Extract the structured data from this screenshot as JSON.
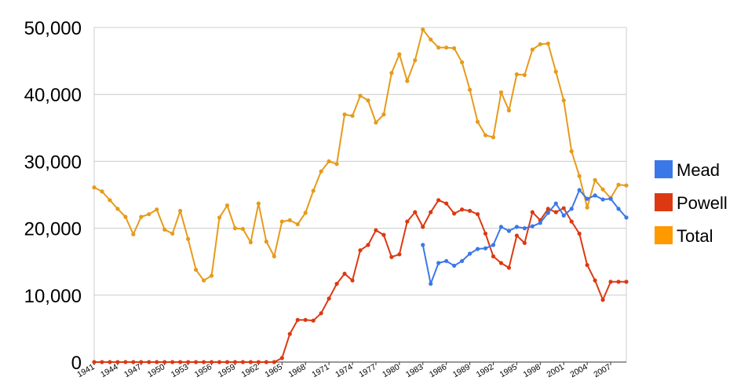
{
  "chart_data": {
    "type": "line",
    "title": "",
    "xlabel": "",
    "ylabel": "",
    "ylim": [
      0,
      50000
    ],
    "xlim": [
      1941,
      2009
    ],
    "grid": true,
    "legend_position": "right",
    "y_ticks": [
      "0",
      "10,000",
      "20,000",
      "30,000",
      "40,000",
      "50,000"
    ],
    "y_tick_values": [
      0,
      10000,
      20000,
      30000,
      40000,
      50000
    ],
    "x_ticks": [
      "1941",
      "1944",
      "1947",
      "1950",
      "1953",
      "1956",
      "1959",
      "1962",
      "1965",
      "1968",
      "1971",
      "1974",
      "1977",
      "1980",
      "1983",
      "1986",
      "1989",
      "1992",
      "1995",
      "1998",
      "2001",
      "2004",
      "2007"
    ],
    "series": [
      {
        "name": "Mead",
        "color": "#3b78e7",
        "x": [
          1983,
          1984,
          1985,
          1986,
          1987,
          1988,
          1989,
          1990,
          1991,
          1992,
          1993,
          1994,
          1995,
          1996,
          1997,
          1998,
          1999,
          2000,
          2001,
          2002,
          2003,
          2004,
          2005,
          2006,
          2007,
          2008,
          2009
        ],
        "values": [
          17500,
          11700,
          14800,
          15100,
          14400,
          15100,
          16200,
          16900,
          17000,
          17500,
          20200,
          19600,
          20200,
          20000,
          20300,
          20800,
          22300,
          23700,
          21900,
          22900,
          25700,
          24400,
          24900,
          24300,
          24400,
          22900,
          21600
        ]
      },
      {
        "name": "Powell",
        "color": "#dc3912",
        "x": [
          1941,
          1942,
          1943,
          1944,
          1945,
          1946,
          1947,
          1948,
          1949,
          1950,
          1951,
          1952,
          1953,
          1954,
          1955,
          1956,
          1957,
          1958,
          1959,
          1960,
          1961,
          1962,
          1963,
          1964,
          1965,
          1966,
          1967,
          1968,
          1969,
          1970,
          1971,
          1972,
          1973,
          1974,
          1975,
          1976,
          1977,
          1978,
          1979,
          1980,
          1981,
          1982,
          1983,
          1984,
          1985,
          1986,
          1987,
          1988,
          1989,
          1990,
          1991,
          1992,
          1993,
          1994,
          1995,
          1996,
          1997,
          1998,
          1999,
          2000,
          2001,
          2002,
          2003,
          2004,
          2005,
          2006,
          2007,
          2008,
          2009
        ],
        "values": [
          0,
          0,
          0,
          0,
          0,
          0,
          0,
          0,
          0,
          0,
          0,
          0,
          0,
          0,
          0,
          0,
          0,
          0,
          0,
          0,
          0,
          0,
          0,
          0,
          600,
          4200,
          6300,
          6300,
          6200,
          7300,
          9500,
          11700,
          13200,
          12200,
          16700,
          17500,
          19700,
          19000,
          15700,
          16100,
          21000,
          22400,
          20200,
          22400,
          24200,
          23700,
          22200,
          22800,
          22600,
          22100,
          19200,
          15800,
          14800,
          14100,
          18900,
          17800,
          22400,
          21200,
          22900,
          22400,
          23000,
          21000,
          19200,
          14500,
          12200,
          9300,
          12000,
          12000,
          12000
        ]
      },
      {
        "name": "Total",
        "color": "#ff9900",
        "line_color": "#e69b1b",
        "x": [
          1941,
          1942,
          1943,
          1944,
          1945,
          1946,
          1947,
          1948,
          1949,
          1950,
          1951,
          1952,
          1953,
          1954,
          1955,
          1956,
          1957,
          1958,
          1959,
          1960,
          1961,
          1962,
          1963,
          1964,
          1965,
          1966,
          1967,
          1968,
          1969,
          1970,
          1971,
          1972,
          1973,
          1974,
          1975,
          1976,
          1977,
          1978,
          1979,
          1980,
          1981,
          1982,
          1983,
          1984,
          1985,
          1986,
          1987,
          1988,
          1989,
          1990,
          1991,
          1992,
          1993,
          1994,
          1995,
          1996,
          1997,
          1998,
          1999,
          2000,
          2001,
          2002,
          2003,
          2004,
          2005,
          2006,
          2007,
          2008,
          2009
        ],
        "values": [
          26100,
          25500,
          24200,
          22900,
          21700,
          19100,
          21700,
          22100,
          22800,
          19800,
          19200,
          22600,
          18400,
          13800,
          12200,
          12900,
          21600,
          23400,
          20000,
          19900,
          17900,
          23700,
          18000,
          15800,
          21000,
          21200,
          20600,
          22300,
          25600,
          28500,
          30000,
          29600,
          37000,
          36800,
          39800,
          39100,
          35800,
          37000,
          43200,
          46000,
          42000,
          45100,
          49700,
          48200,
          47000,
          47000,
          46900,
          44800,
          40700,
          35900,
          33900,
          33600,
          40300,
          37600,
          43000,
          42900,
          46700,
          47500,
          47600,
          43400,
          39100,
          31500,
          27800,
          23100,
          27200,
          25800,
          24500,
          26500,
          26400
        ]
      }
    ]
  }
}
